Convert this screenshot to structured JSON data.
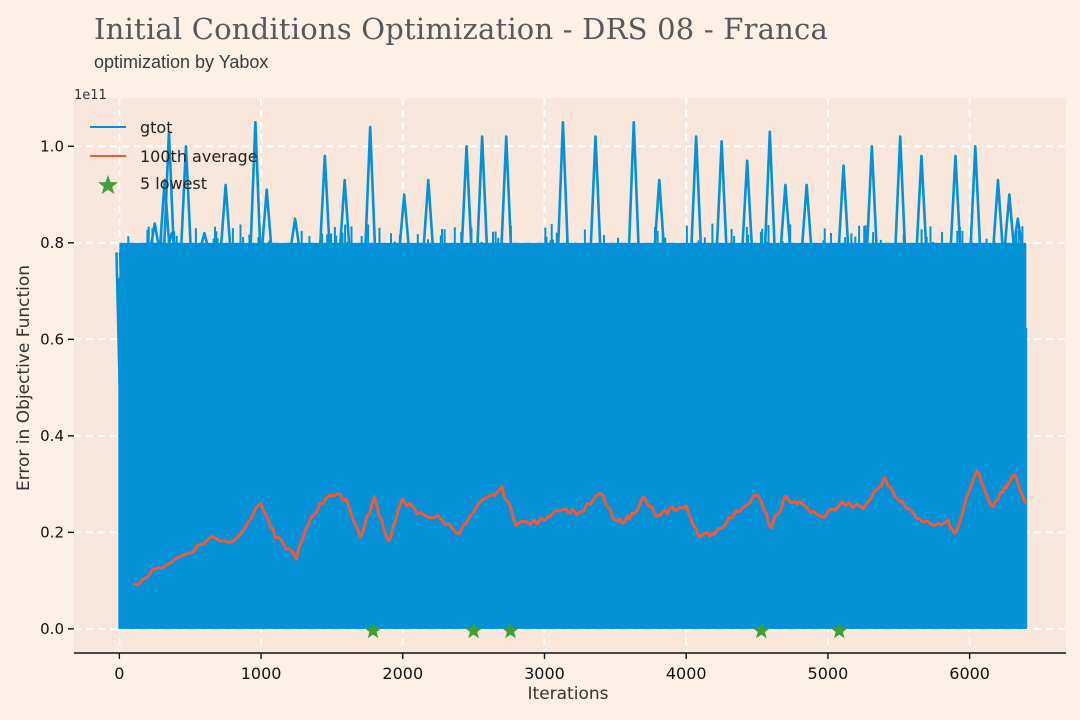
{
  "header": {
    "title": "Initial Conditions Optimization - DRS 08 - Franca",
    "subtitle": "optimization by Yabox"
  },
  "colors": {
    "background": "#fdf1e6",
    "plot_area": "#f8e7da",
    "gtot": "#0392d8",
    "average": "#ee5a3c",
    "lowest": "#3f9f3a",
    "grid": "#ffffff"
  },
  "chart_data": {
    "type": "line",
    "title": "Initial Conditions Optimization - DRS 08 - Franca",
    "subtitle": "optimization by Yabox",
    "xlabel": "Iterations",
    "ylabel": "Error in Objective Function",
    "y_offset_label": "1e11",
    "xlim": [
      -320,
      6680
    ],
    "ylim": [
      -0.05,
      1.1
    ],
    "x_ticks": [
      0,
      1000,
      2000,
      3000,
      4000,
      5000,
      6000
    ],
    "x_tick_labels": [
      "0",
      "1000",
      "2000",
      "3000",
      "4000",
      "5000",
      "6000"
    ],
    "y_ticks": [
      0.0,
      0.2,
      0.4,
      0.6,
      0.8,
      1.0
    ],
    "y_tick_labels": [
      "0.0",
      "0.2",
      "0.4",
      "0.6",
      "0.8",
      "1.0"
    ],
    "grid": true,
    "legend_position": "top-left",
    "legend": [
      "gtot",
      "100th average",
      "5 lowest"
    ],
    "series": [
      {
        "name": "gtot",
        "color": "#0392d8",
        "x_range": [
          0,
          6400
        ],
        "band": {
          "x": [
            0,
            6400
          ],
          "y": [
            0.0,
            0.8
          ],
          "note_density": "dense"
        },
        "spikes": [
          {
            "x": 15,
            "y": 0.35
          },
          {
            "x": 40,
            "y": 0.5
          },
          {
            "x": 60,
            "y": 0.52
          },
          {
            "x": 80,
            "y": 0.67
          },
          {
            "x": 110,
            "y": 0.66
          },
          {
            "x": 150,
            "y": 0.62
          },
          {
            "x": 180,
            "y": 0.7
          },
          {
            "x": 210,
            "y": 0.65
          },
          {
            "x": 250,
            "y": 0.84
          },
          {
            "x": 320,
            "y": 0.93
          },
          {
            "x": 350,
            "y": 1.03
          },
          {
            "x": 370,
            "y": 0.82
          },
          {
            "x": 470,
            "y": 1.0
          },
          {
            "x": 600,
            "y": 0.82
          },
          {
            "x": 750,
            "y": 0.92
          },
          {
            "x": 960,
            "y": 1.05
          },
          {
            "x": 1040,
            "y": 0.91
          },
          {
            "x": 1240,
            "y": 0.85
          },
          {
            "x": 1450,
            "y": 0.98
          },
          {
            "x": 1590,
            "y": 0.93
          },
          {
            "x": 1770,
            "y": 1.04
          },
          {
            "x": 2010,
            "y": 0.9
          },
          {
            "x": 2180,
            "y": 0.93
          },
          {
            "x": 2450,
            "y": 1.0
          },
          {
            "x": 2560,
            "y": 1.02
          },
          {
            "x": 2730,
            "y": 1.02
          },
          {
            "x": 3130,
            "y": 1.05
          },
          {
            "x": 3360,
            "y": 1.02
          },
          {
            "x": 3630,
            "y": 1.05
          },
          {
            "x": 3810,
            "y": 0.93
          },
          {
            "x": 4070,
            "y": 1.02
          },
          {
            "x": 4250,
            "y": 1.01
          },
          {
            "x": 4430,
            "y": 0.97
          },
          {
            "x": 4590,
            "y": 1.03
          },
          {
            "x": 4700,
            "y": 0.92
          },
          {
            "x": 4850,
            "y": 0.92
          },
          {
            "x": 5110,
            "y": 0.96
          },
          {
            "x": 5310,
            "y": 1.0
          },
          {
            "x": 5510,
            "y": 1.02
          },
          {
            "x": 5660,
            "y": 0.98
          },
          {
            "x": 5900,
            "y": 0.98
          },
          {
            "x": 6040,
            "y": 1.0
          },
          {
            "x": 6200,
            "y": 0.93
          },
          {
            "x": 6280,
            "y": 0.9
          },
          {
            "x": 6340,
            "y": 0.85
          }
        ]
      },
      {
        "name": "100th average",
        "color": "#ee5a3c",
        "x": [
          100,
          300,
          500,
          650,
          800,
          1000,
          1100,
          1250,
          1350,
          1480,
          1600,
          1700,
          1800,
          1900,
          2000,
          2100,
          2250,
          2400,
          2550,
          2700,
          2800,
          2950,
          3100,
          3250,
          3400,
          3500,
          3600,
          3700,
          3800,
          3900,
          4000,
          4100,
          4200,
          4350,
          4500,
          4600,
          4700,
          4800,
          4950,
          5100,
          5250,
          5400,
          5550,
          5700,
          5850,
          5900,
          6050,
          6150,
          6250,
          6320,
          6400
        ],
        "y": [
          0.09,
          0.13,
          0.16,
          0.19,
          0.18,
          0.26,
          0.19,
          0.15,
          0.23,
          0.28,
          0.27,
          0.19,
          0.27,
          0.18,
          0.27,
          0.24,
          0.23,
          0.2,
          0.26,
          0.29,
          0.22,
          0.22,
          0.25,
          0.24,
          0.28,
          0.22,
          0.23,
          0.27,
          0.23,
          0.25,
          0.25,
          0.19,
          0.2,
          0.24,
          0.28,
          0.21,
          0.27,
          0.26,
          0.23,
          0.26,
          0.25,
          0.31,
          0.25,
          0.22,
          0.22,
          0.2,
          0.33,
          0.25,
          0.29,
          0.32,
          0.26
        ]
      },
      {
        "name": "5 lowest",
        "color": "#3f9f3a",
        "type": "scatter",
        "x": [
          1790,
          2500,
          2760,
          4530,
          5080
        ],
        "y": [
          0.0,
          0.0,
          0.0,
          0.0,
          0.0
        ]
      }
    ]
  }
}
